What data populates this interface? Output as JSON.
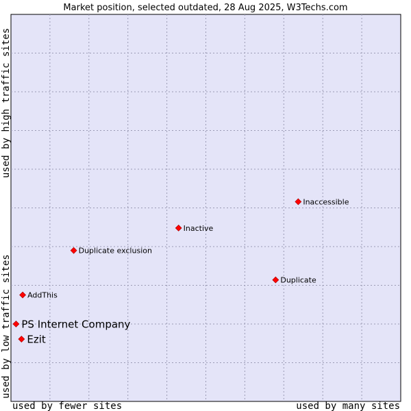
{
  "chart_data": {
    "type": "scatter",
    "title": "Market position, selected outdated, 28 Aug 2025, W3Techs.com",
    "xlabel_left": "used by fewer sites",
    "xlabel_right": "used by many sites",
    "ylabel_bottom": "used by low traffic sites",
    "ylabel_top": "used by high traffic sites",
    "xlim": [
      0,
      100
    ],
    "ylim": [
      0,
      100
    ],
    "grid": true,
    "plot_background": "#e4e4f8",
    "marker_color": "#ff0000",
    "points": [
      {
        "label": "Inaccessible",
        "x": 73.7,
        "y": 51.6,
        "highlight": false
      },
      {
        "label": "Inactive",
        "x": 43.0,
        "y": 44.8,
        "highlight": false
      },
      {
        "label": "Duplicate exclusion",
        "x": 16.1,
        "y": 39.0,
        "highlight": false
      },
      {
        "label": "Duplicate",
        "x": 67.9,
        "y": 31.4,
        "highlight": false
      },
      {
        "label": "AddThis",
        "x": 3.0,
        "y": 27.5,
        "highlight": false
      },
      {
        "label": "PS Internet Company",
        "x": 1.3,
        "y": 20.0,
        "highlight": true
      },
      {
        "label": "Ezit",
        "x": 2.7,
        "y": 16.1,
        "highlight": true
      }
    ]
  }
}
